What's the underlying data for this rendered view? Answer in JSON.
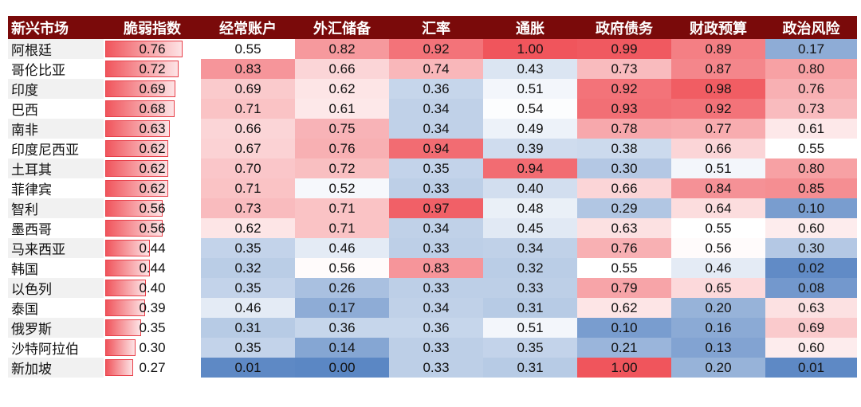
{
  "chart_data": {
    "type": "heatmap",
    "columns": [
      "新兴市场",
      "脆弱指数",
      "经常账户",
      "外汇储备",
      "汇率",
      "通胀",
      "政府债务",
      "财政预算",
      "政治风险"
    ],
    "rows": [
      {
        "country": "阿根廷",
        "values": [
          "0.76",
          "0.55",
          "0.82",
          "0.92",
          "1.00",
          "0.99",
          "0.89",
          "0.17"
        ]
      },
      {
        "country": "哥伦比亚",
        "values": [
          "0.72",
          "0.83",
          "0.66",
          "0.74",
          "0.43",
          "0.73",
          "0.87",
          "0.80"
        ]
      },
      {
        "country": "印度",
        "values": [
          "0.69",
          "0.69",
          "0.62",
          "0.36",
          "0.51",
          "0.92",
          "0.98",
          "0.76"
        ]
      },
      {
        "country": "巴西",
        "values": [
          "0.68",
          "0.71",
          "0.61",
          "0.34",
          "0.54",
          "0.93",
          "0.92",
          "0.73"
        ]
      },
      {
        "country": "南非",
        "values": [
          "0.63",
          "0.66",
          "0.75",
          "0.34",
          "0.49",
          "0.78",
          "0.77",
          "0.61"
        ]
      },
      {
        "country": "印度尼西亚",
        "values": [
          "0.62",
          "0.67",
          "0.76",
          "0.94",
          "0.39",
          "0.38",
          "0.66",
          "0.55"
        ]
      },
      {
        "country": "土耳其",
        "values": [
          "0.62",
          "0.70",
          "0.72",
          "0.35",
          "0.94",
          "0.30",
          "0.51",
          "0.80"
        ]
      },
      {
        "country": "菲律宾",
        "values": [
          "0.62",
          "0.71",
          "0.52",
          "0.33",
          "0.40",
          "0.66",
          "0.84",
          "0.85"
        ]
      },
      {
        "country": "智利",
        "values": [
          "0.56",
          "0.73",
          "0.71",
          "0.97",
          "0.48",
          "0.29",
          "0.64",
          "0.10"
        ]
      },
      {
        "country": "墨西哥",
        "values": [
          "0.56",
          "0.62",
          "0.71",
          "0.34",
          "0.45",
          "0.63",
          "0.55",
          "0.60"
        ]
      },
      {
        "country": "马来西亚",
        "values": [
          "0.44",
          "0.35",
          "0.46",
          "0.33",
          "0.34",
          "0.76",
          "0.56",
          "0.30"
        ]
      },
      {
        "country": "韩国",
        "values": [
          "0.44",
          "0.32",
          "0.56",
          "0.83",
          "0.32",
          "0.55",
          "0.46",
          "0.02"
        ]
      },
      {
        "country": "以色列",
        "values": [
          "0.40",
          "0.35",
          "0.26",
          "0.33",
          "0.33",
          "0.79",
          "0.65",
          "0.08"
        ]
      },
      {
        "country": "泰国",
        "values": [
          "0.39",
          "0.46",
          "0.17",
          "0.34",
          "0.31",
          "0.62",
          "0.20",
          "0.63"
        ]
      },
      {
        "country": "俄罗斯",
        "values": [
          "0.35",
          "0.31",
          "0.36",
          "0.36",
          "0.51",
          "0.10",
          "0.16",
          "0.69"
        ]
      },
      {
        "country": "沙特阿拉伯",
        "values": [
          "0.30",
          "0.35",
          "0.14",
          "0.33",
          "0.35",
          "0.21",
          "0.13",
          "0.60"
        ]
      },
      {
        "country": "新加坡",
        "values": [
          "0.27",
          "0.01",
          "0.00",
          "0.33",
          "0.31",
          "1.00",
          "0.20",
          "0.01"
        ]
      }
    ],
    "colors": {
      "header_bg": "#7a0a0a",
      "header_text": "#ffffff",
      "high": "#f0555c",
      "mid": "#ffffff",
      "low": "#5b87c4",
      "bar_border": "#e8404a"
    }
  }
}
